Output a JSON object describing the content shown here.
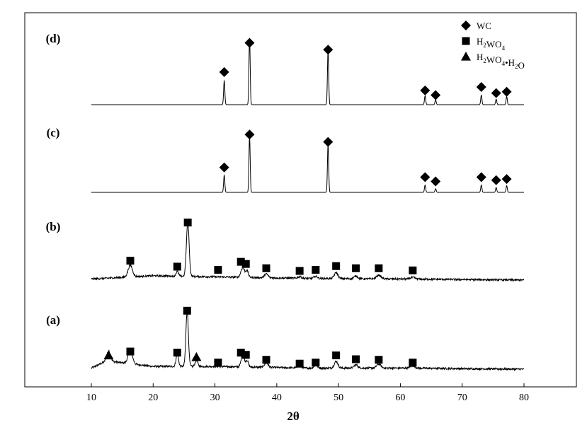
{
  "chart_data": {
    "type": "line",
    "xlabel": "2θ",
    "xlim": [
      10,
      80
    ],
    "x_ticks": [
      "10",
      "20",
      "30",
      "40",
      "50",
      "60",
      "70",
      "80"
    ],
    "grid": false,
    "legend_position": "top-right",
    "legend": [
      {
        "marker": "diamond",
        "label_parts": [
          {
            "t": "WC",
            "s": "n"
          }
        ]
      },
      {
        "marker": "square",
        "label_parts": [
          {
            "t": "H",
            "s": "n"
          },
          {
            "t": "2",
            "s": "sub"
          },
          {
            "t": "WO",
            "s": "n"
          },
          {
            "t": "4",
            "s": "sub"
          }
        ]
      },
      {
        "marker": "triangle",
        "label_parts": [
          {
            "t": "H",
            "s": "n"
          },
          {
            "t": "2",
            "s": "sub"
          },
          {
            "t": "WO",
            "s": "n"
          },
          {
            "t": "4",
            "s": "sub"
          },
          {
            "t": "•H",
            "s": "n"
          },
          {
            "t": "2",
            "s": "sub"
          },
          {
            "t": "O",
            "s": "n"
          }
        ]
      }
    ],
    "series": [
      {
        "panel": "(a)",
        "kind": "noisy",
        "background": [
          [
            10,
            0.02
          ],
          [
            12.5,
            0.15
          ],
          [
            20,
            0.05
          ],
          [
            30,
            0.05
          ],
          [
            45,
            0.02
          ],
          [
            60,
            0.02
          ],
          [
            80,
            0.0
          ]
        ],
        "peaks": [
          [
            12.8,
            0.18,
            0.3
          ],
          [
            16.3,
            0.24,
            0.35
          ],
          [
            23.9,
            0.22,
            0.2
          ],
          [
            25.5,
            1.0,
            0.2
          ],
          [
            27.0,
            0.12,
            0.2
          ],
          [
            34.5,
            0.23,
            0.25
          ],
          [
            35.2,
            0.12,
            0.2
          ],
          [
            38.3,
            0.08,
            0.3
          ],
          [
            43.7,
            0.04,
            0.3
          ],
          [
            46.3,
            0.05,
            0.3
          ],
          [
            49.6,
            0.12,
            0.3
          ],
          [
            52.8,
            0.06,
            0.3
          ],
          [
            56.5,
            0.07,
            0.35
          ],
          [
            62.0,
            0.04,
            0.4
          ]
        ],
        "markers": [
          {
            "x": 12.8,
            "h": 0.25,
            "m": "triangle"
          },
          {
            "x": 16.3,
            "h": 0.32,
            "m": "square"
          },
          {
            "x": 23.9,
            "h": 0.3,
            "m": "square"
          },
          {
            "x": 25.5,
            "h": 1.06,
            "m": "square"
          },
          {
            "x": 27.0,
            "h": 0.22,
            "m": "triangle"
          },
          {
            "x": 30.5,
            "h": 0.12,
            "m": "square"
          },
          {
            "x": 34.2,
            "h": 0.3,
            "m": "square"
          },
          {
            "x": 35.0,
            "h": 0.26,
            "m": "square"
          },
          {
            "x": 38.3,
            "h": 0.17,
            "m": "square"
          },
          {
            "x": 43.7,
            "h": 0.1,
            "m": "square"
          },
          {
            "x": 46.3,
            "h": 0.12,
            "m": "square"
          },
          {
            "x": 49.6,
            "h": 0.25,
            "m": "square"
          },
          {
            "x": 52.8,
            "h": 0.18,
            "m": "square"
          },
          {
            "x": 56.5,
            "h": 0.17,
            "m": "square"
          },
          {
            "x": 62.0,
            "h": 0.12,
            "m": "square"
          }
        ]
      },
      {
        "panel": "(b)",
        "kind": "noisy",
        "background": [
          [
            10,
            0.02
          ],
          [
            15,
            0.05
          ],
          [
            20,
            0.08
          ],
          [
            30,
            0.06
          ],
          [
            45,
            0.03
          ],
          [
            60,
            0.02
          ],
          [
            80,
            0.0
          ]
        ],
        "peaks": [
          [
            16.3,
            0.22,
            0.35
          ],
          [
            23.9,
            0.09,
            0.2
          ],
          [
            25.6,
            1.0,
            0.22
          ],
          [
            34.5,
            0.18,
            0.3
          ],
          [
            35.2,
            0.12,
            0.2
          ],
          [
            38.3,
            0.07,
            0.3
          ],
          [
            43.7,
            0.03,
            0.3
          ],
          [
            46.3,
            0.04,
            0.3
          ],
          [
            49.6,
            0.11,
            0.3
          ],
          [
            52.8,
            0.05,
            0.3
          ],
          [
            56.5,
            0.07,
            0.35
          ],
          [
            62.0,
            0.03,
            0.4
          ]
        ],
        "markers": [
          {
            "x": 16.3,
            "h": 0.36,
            "m": "square"
          },
          {
            "x": 23.9,
            "h": 0.25,
            "m": "square"
          },
          {
            "x": 25.6,
            "h": 1.07,
            "m": "square"
          },
          {
            "x": 30.5,
            "h": 0.19,
            "m": "square"
          },
          {
            "x": 34.2,
            "h": 0.34,
            "m": "square"
          },
          {
            "x": 35.0,
            "h": 0.3,
            "m": "square"
          },
          {
            "x": 38.3,
            "h": 0.22,
            "m": "square"
          },
          {
            "x": 43.7,
            "h": 0.17,
            "m": "square"
          },
          {
            "x": 46.3,
            "h": 0.19,
            "m": "square"
          },
          {
            "x": 49.6,
            "h": 0.26,
            "m": "square"
          },
          {
            "x": 52.8,
            "h": 0.22,
            "m": "square"
          },
          {
            "x": 56.5,
            "h": 0.22,
            "m": "square"
          },
          {
            "x": 62.0,
            "h": 0.18,
            "m": "square"
          }
        ]
      },
      {
        "panel": "(c)",
        "kind": "clean",
        "background": [
          [
            10,
            0.0
          ],
          [
            80,
            0.0
          ]
        ],
        "peaks": [
          [
            31.5,
            0.28,
            0.1
          ],
          [
            35.6,
            0.91,
            0.1
          ],
          [
            48.3,
            0.79,
            0.1
          ],
          [
            64.0,
            0.12,
            0.1
          ],
          [
            65.7,
            0.06,
            0.1
          ],
          [
            73.1,
            0.12,
            0.1
          ],
          [
            75.5,
            0.08,
            0.1
          ],
          [
            77.2,
            0.11,
            0.1
          ]
        ],
        "markers": [
          {
            "x": 31.5,
            "h": 0.41,
            "m": "diamond"
          },
          {
            "x": 35.6,
            "h": 0.95,
            "m": "diamond"
          },
          {
            "x": 48.3,
            "h": 0.83,
            "m": "diamond"
          },
          {
            "x": 64.0,
            "h": 0.25,
            "m": "diamond"
          },
          {
            "x": 65.7,
            "h": 0.18,
            "m": "diamond"
          },
          {
            "x": 73.1,
            "h": 0.25,
            "m": "diamond"
          },
          {
            "x": 75.5,
            "h": 0.2,
            "m": "diamond"
          },
          {
            "x": 77.2,
            "h": 0.22,
            "m": "diamond"
          }
        ]
      },
      {
        "panel": "(d)",
        "kind": "clean",
        "background": [
          [
            10,
            0.0
          ],
          [
            80,
            0.0
          ]
        ],
        "peaks": [
          [
            31.5,
            0.35,
            0.1
          ],
          [
            35.6,
            0.98,
            0.1
          ],
          [
            48.3,
            0.8,
            0.1
          ],
          [
            64.0,
            0.13,
            0.1
          ],
          [
            65.7,
            0.07,
            0.1
          ],
          [
            73.1,
            0.14,
            0.1
          ],
          [
            75.5,
            0.08,
            0.1
          ],
          [
            77.2,
            0.12,
            0.1
          ]
        ],
        "markers": [
          {
            "x": 31.5,
            "h": 0.48,
            "m": "diamond"
          },
          {
            "x": 35.6,
            "h": 0.91,
            "m": "diamond"
          },
          {
            "x": 48.3,
            "h": 0.81,
            "m": "diamond"
          },
          {
            "x": 64.0,
            "h": 0.21,
            "m": "diamond"
          },
          {
            "x": 65.7,
            "h": 0.14,
            "m": "diamond"
          },
          {
            "x": 73.1,
            "h": 0.26,
            "m": "diamond"
          },
          {
            "x": 75.5,
            "h": 0.17,
            "m": "diamond"
          },
          {
            "x": 77.2,
            "h": 0.19,
            "m": "diamond"
          }
        ]
      }
    ]
  }
}
